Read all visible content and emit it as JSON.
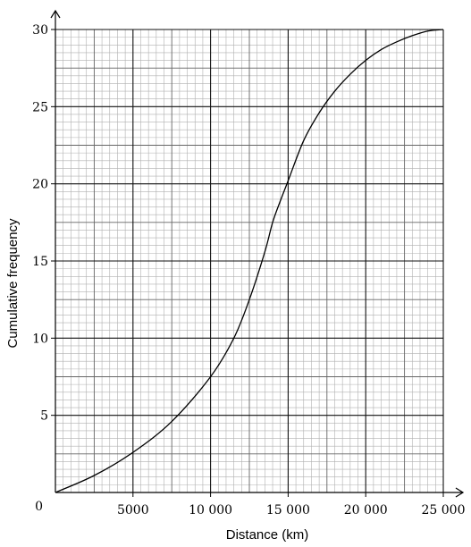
{
  "chart_data": {
    "type": "line",
    "title": "",
    "xlabel": "Distance (km)",
    "ylabel": "Cumulative frequency",
    "xlim": [
      0,
      25000
    ],
    "ylim": [
      0,
      30
    ],
    "origin_label": "0",
    "x_ticks": [
      {
        "value": 5000,
        "label": "5000"
      },
      {
        "value": 10000,
        "label": "10 000"
      },
      {
        "value": 15000,
        "label": "15 000"
      },
      {
        "value": 20000,
        "label": "20 000"
      },
      {
        "value": 25000,
        "label": "25 000"
      }
    ],
    "y_ticks": [
      {
        "value": 5,
        "label": "5"
      },
      {
        "value": 10,
        "label": "10"
      },
      {
        "value": 15,
        "label": "15"
      },
      {
        "value": 20,
        "label": "20"
      },
      {
        "value": 25,
        "label": "25"
      },
      {
        "value": 30,
        "label": "30"
      }
    ],
    "grid": true,
    "legend": "none",
    "series": [
      {
        "x": [
          0,
          2500,
          5000,
          7500,
          10000,
          11500,
          12500,
          13500,
          14000,
          14500,
          15000,
          16000,
          17000,
          18000,
          19000,
          20000,
          21000,
          22000,
          23000,
          24000,
          25000
        ],
        "y": [
          0,
          1.1,
          2.6,
          4.6,
          7.5,
          10,
          12.5,
          15.6,
          17.5,
          18.9,
          20.2,
          22.8,
          24.6,
          26,
          27.1,
          28,
          28.7,
          29.2,
          29.6,
          29.9,
          30
        ]
      }
    ],
    "colors": {
      "line": "#000000",
      "grid_minor": "#b0b0b0",
      "grid_mid": "#666666",
      "grid_major": "#111111",
      "axis": "#000000"
    }
  }
}
